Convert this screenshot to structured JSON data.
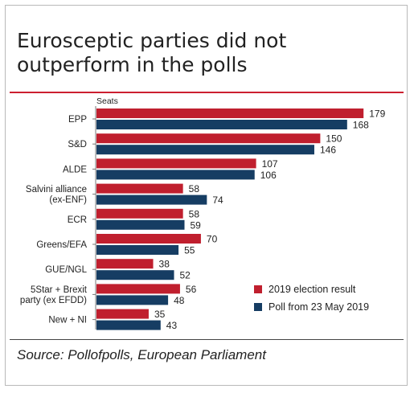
{
  "title": "Eurosceptic parties did not outperform in the polls",
  "source": "Source: Pollofpolls, European Parliament",
  "colors": {
    "election": "#c01f2e",
    "poll": "#163d63"
  },
  "chart_data": {
    "type": "bar",
    "orientation": "horizontal",
    "ylabel": "Seats",
    "categories": [
      "EPP",
      "S&D",
      "ALDE",
      "Salvini alliance (ex-ENF)",
      "ECR",
      "Greens/EFA",
      "GUE/NGL",
      "5Star + Brexit party (ex EFDD)",
      "New + NI"
    ],
    "category_lines": [
      [
        "EPP"
      ],
      [
        "S&D"
      ],
      [
        "ALDE"
      ],
      [
        "Salvini alliance",
        "(ex-ENF)"
      ],
      [
        "ECR"
      ],
      [
        "Greens/EFA"
      ],
      [
        "GUE/NGL"
      ],
      [
        "5Star + Brexit",
        "party (ex EFDD)"
      ],
      [
        "New + NI"
      ]
    ],
    "series": [
      {
        "name": "2019 election result",
        "values": [
          179,
          150,
          107,
          58,
          58,
          70,
          38,
          56,
          35
        ]
      },
      {
        "name": "Poll from 23 May 2019",
        "values": [
          168,
          146,
          106,
          74,
          59,
          55,
          52,
          48,
          43
        ]
      }
    ],
    "xlim": [
      0,
      185
    ],
    "grid": false,
    "legend_position": "bottom-right"
  }
}
